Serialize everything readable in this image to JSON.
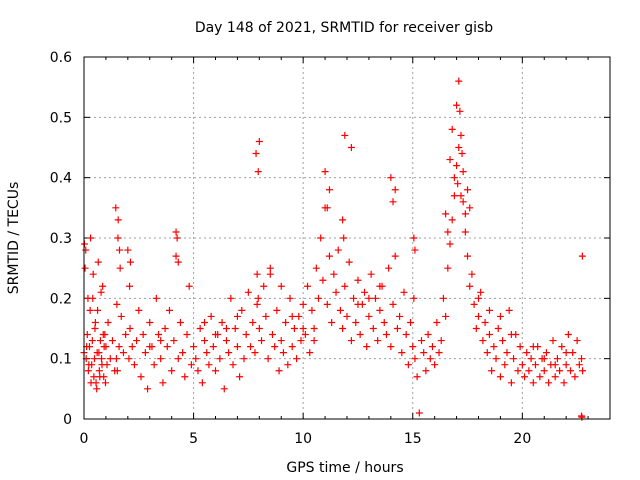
{
  "chart_data": {
    "type": "scatter",
    "title": "Day 148 of 2021, SRMTID for receiver gisb",
    "xlabel": "GPS time / hours",
    "ylabel": "SRMTID / TECUs",
    "xlim": [
      0,
      24
    ],
    "ylim": [
      0,
      0.6
    ],
    "xticks": [
      0,
      5,
      10,
      15,
      20
    ],
    "xtick_labels": [
      "0",
      "5",
      "10",
      "15",
      "20"
    ],
    "yticks": [
      0,
      0.1,
      0.2,
      0.3,
      0.4,
      0.5,
      0.6
    ],
    "ytick_labels": [
      "0",
      "0.1",
      "0.2",
      "0.3",
      "0.4",
      "0.5",
      "0.6"
    ],
    "grid": true,
    "marker": "+",
    "color": "#ff0000",
    "series": [
      {
        "name": "SRMTID",
        "x": [
          0.0,
          0.05,
          0.1,
          0.15,
          0.2,
          0.25,
          0.3,
          0.35,
          0.4,
          0.45,
          0.5,
          0.55,
          0.6,
          0.65,
          0.7,
          0.75,
          0.8,
          0.85,
          0.9,
          0.95,
          1.0,
          1.05,
          1.1,
          1.2,
          1.3,
          1.4,
          1.45,
          1.5,
          1.55,
          1.6,
          1.65,
          1.7,
          1.8,
          1.9,
          2.0,
          2.05,
          2.1,
          2.2,
          2.3,
          2.4,
          2.5,
          2.6,
          2.7,
          2.8,
          2.9,
          3.0,
          3.1,
          3.2,
          3.3,
          3.4,
          3.5,
          3.6,
          3.7,
          3.8,
          3.9,
          4.0,
          4.1,
          4.2,
          4.3,
          4.4,
          4.5,
          4.6,
          4.7,
          4.8,
          4.9,
          5.0,
          5.1,
          5.2,
          5.3,
          5.4,
          5.5,
          5.6,
          5.7,
          5.8,
          5.9,
          6.0,
          6.1,
          6.2,
          6.3,
          6.4,
          6.5,
          6.6,
          6.7,
          6.8,
          6.9,
          7.0,
          7.1,
          7.2,
          7.3,
          7.4,
          7.5,
          7.6,
          7.7,
          7.8,
          7.85,
          7.9,
          7.95,
          8.0,
          8.1,
          8.2,
          8.3,
          8.4,
          8.5,
          8.6,
          8.7,
          8.8,
          8.9,
          9.0,
          9.1,
          9.2,
          9.3,
          9.4,
          9.5,
          9.6,
          9.7,
          9.8,
          9.9,
          10.0,
          10.1,
          10.2,
          10.3,
          10.4,
          10.5,
          10.6,
          10.7,
          10.8,
          10.9,
          11.0,
          11.1,
          11.2,
          11.3,
          11.4,
          11.5,
          11.6,
          11.7,
          11.8,
          11.9,
          12.0,
          12.1,
          12.2,
          12.3,
          12.4,
          12.5,
          12.6,
          12.7,
          12.8,
          12.9,
          13.0,
          13.1,
          13.2,
          13.3,
          13.4,
          13.5,
          13.6,
          13.7,
          13.8,
          13.9,
          14.0,
          14.1,
          14.2,
          14.3,
          14.4,
          14.5,
          14.6,
          14.7,
          14.8,
          14.9,
          15.0,
          15.05,
          15.1,
          15.2,
          15.3,
          15.4,
          15.5,
          15.6,
          15.7,
          15.8,
          15.9,
          16.0,
          16.1,
          16.2,
          16.3,
          16.4,
          16.5,
          16.6,
          16.7,
          16.8,
          16.9,
          17.0,
          17.05,
          17.1,
          17.15,
          17.2,
          17.25,
          17.3,
          17.4,
          17.5,
          17.6,
          17.7,
          17.8,
          17.9,
          18.0,
          18.1,
          18.2,
          18.3,
          18.4,
          18.5,
          18.6,
          18.7,
          18.8,
          18.9,
          19.0,
          19.1,
          19.2,
          19.3,
          19.4,
          19.5,
          19.6,
          19.7,
          19.8,
          19.9,
          20.0,
          20.1,
          20.2,
          20.3,
          20.4,
          20.5,
          20.6,
          20.7,
          20.8,
          20.9,
          21.0,
          21.1,
          21.2,
          21.3,
          21.4,
          21.5,
          21.6,
          21.7,
          21.8,
          21.9,
          22.0,
          22.1,
          22.2,
          22.3,
          22.4,
          22.5,
          22.6,
          22.7,
          22.75,
          0.02,
          0.08,
          0.12,
          0.18,
          0.22,
          0.28,
          0.32,
          0.38,
          0.42,
          0.48,
          0.52,
          0.58,
          0.62,
          0.68,
          0.72,
          0.78,
          0.82,
          0.88,
          0.92,
          0.98,
          1.48,
          1.52,
          1.56,
          1.62,
          2.08,
          2.12,
          4.2,
          4.25,
          4.3,
          7.9,
          7.95,
          8.0,
          11.0,
          11.1,
          11.2,
          11.8,
          11.85,
          11.9,
          12.2,
          14.0,
          14.1,
          14.2,
          16.5,
          16.6,
          16.7,
          16.8,
          16.9,
          17.0,
          17.1,
          17.2,
          17.3,
          17.4,
          17.5,
          17.6,
          15.05,
          15.1,
          22.7,
          22.72,
          22.74,
          8.5,
          9.0,
          9.5,
          10.0,
          10.5,
          12.5,
          13.0,
          13.5,
          18.0,
          18.5,
          19.0,
          19.5,
          20.5,
          21.0,
          21.5,
          22.0,
          3.0,
          3.5,
          5.5,
          6.0,
          6.5,
          7.0
        ],
        "y": [
          0.11,
          0.25,
          0.1,
          0.14,
          0.08,
          0.12,
          0.3,
          0.09,
          0.2,
          0.07,
          0.15,
          0.06,
          0.11,
          0.26,
          0.08,
          0.13,
          0.1,
          0.22,
          0.07,
          0.14,
          0.12,
          0.09,
          0.16,
          0.1,
          0.13,
          0.08,
          0.35,
          0.19,
          0.3,
          0.12,
          0.25,
          0.17,
          0.11,
          0.14,
          0.28,
          0.1,
          0.15,
          0.12,
          0.09,
          0.13,
          0.18,
          0.07,
          0.14,
          0.11,
          0.05,
          0.16,
          0.12,
          0.09,
          0.2,
          0.14,
          0.1,
          0.06,
          0.15,
          0.12,
          0.18,
          0.08,
          0.13,
          0.27,
          0.1,
          0.16,
          0.11,
          0.07,
          0.14,
          0.22,
          0.09,
          0.12,
          0.1,
          0.08,
          0.15,
          0.06,
          0.13,
          0.11,
          0.09,
          0.17,
          0.12,
          0.08,
          0.14,
          0.1,
          0.16,
          0.05,
          0.13,
          0.11,
          0.2,
          0.09,
          0.15,
          0.12,
          0.07,
          0.18,
          0.1,
          0.14,
          0.21,
          0.12,
          0.16,
          0.11,
          0.44,
          0.19,
          0.41,
          0.15,
          0.13,
          0.22,
          0.17,
          0.1,
          0.25,
          0.14,
          0.12,
          0.18,
          0.08,
          0.13,
          0.11,
          0.16,
          0.09,
          0.2,
          0.12,
          0.15,
          0.1,
          0.17,
          0.13,
          0.19,
          0.14,
          0.22,
          0.11,
          0.18,
          0.15,
          0.25,
          0.2,
          0.3,
          0.23,
          0.35,
          0.19,
          0.27,
          0.16,
          0.24,
          0.21,
          0.28,
          0.18,
          0.15,
          0.22,
          0.17,
          0.26,
          0.13,
          0.2,
          0.16,
          0.23,
          0.14,
          0.19,
          0.21,
          0.12,
          0.17,
          0.24,
          0.15,
          0.2,
          0.13,
          0.18,
          0.22,
          0.16,
          0.14,
          0.25,
          0.12,
          0.19,
          0.27,
          0.15,
          0.17,
          0.11,
          0.21,
          0.14,
          0.09,
          0.16,
          0.12,
          0.2,
          0.1,
          0.07,
          0.01,
          0.13,
          0.11,
          0.08,
          0.14,
          0.1,
          0.12,
          0.09,
          0.16,
          0.11,
          0.13,
          0.2,
          0.17,
          0.25,
          0.29,
          0.33,
          0.37,
          0.42,
          0.39,
          0.56,
          0.51,
          0.47,
          0.44,
          0.36,
          0.31,
          0.27,
          0.22,
          0.24,
          0.19,
          0.15,
          0.17,
          0.21,
          0.13,
          0.16,
          0.11,
          0.14,
          0.08,
          0.12,
          0.1,
          0.15,
          0.07,
          0.13,
          0.09,
          0.11,
          0.18,
          0.06,
          0.1,
          0.14,
          0.08,
          0.12,
          0.09,
          0.07,
          0.11,
          0.08,
          0.1,
          0.06,
          0.09,
          0.12,
          0.07,
          0.1,
          0.08,
          0.11,
          0.06,
          0.09,
          0.13,
          0.07,
          0.1,
          0.08,
          0.12,
          0.06,
          0.09,
          0.14,
          0.08,
          0.11,
          0.07,
          0.13,
          0.09,
          0.1,
          0.08,
          0.29,
          0.28,
          0.12,
          0.2,
          0.09,
          0.18,
          0.06,
          0.13,
          0.24,
          0.1,
          0.16,
          0.05,
          0.18,
          0.11,
          0.07,
          0.21,
          0.09,
          0.14,
          0.12,
          0.06,
          0.1,
          0.08,
          0.33,
          0.28,
          0.22,
          0.26,
          0.31,
          0.3,
          0.26,
          0.24,
          0.2,
          0.46,
          0.41,
          0.35,
          0.38,
          0.33,
          0.3,
          0.47,
          0.45,
          0.4,
          0.36,
          0.38,
          0.34,
          0.31,
          0.43,
          0.48,
          0.4,
          0.52,
          0.45,
          0.37,
          0.41,
          0.34,
          0.38,
          0.35,
          0.3,
          0.28,
          0.005,
          0.003,
          0.27,
          0.24,
          0.22,
          0.17,
          0.15,
          0.13,
          0.19,
          0.2,
          0.22,
          0.2,
          0.18,
          0.17,
          0.14,
          0.12,
          0.1,
          0.09,
          0.11,
          0.12,
          0.13,
          0.16,
          0.14,
          0.15,
          0.17
        ]
      }
    ]
  }
}
